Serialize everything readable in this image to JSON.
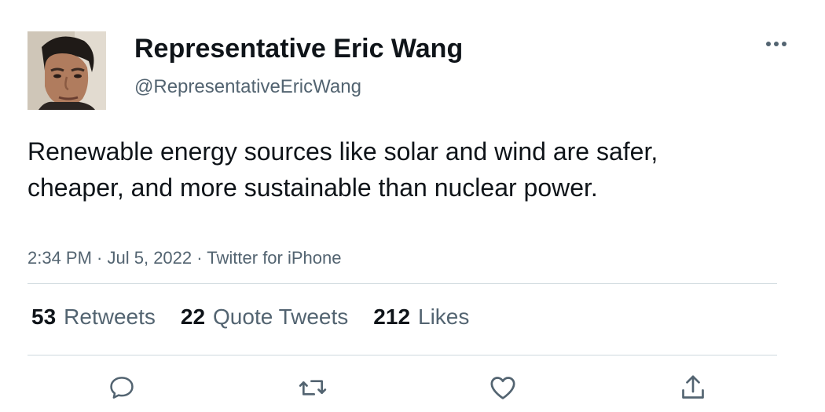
{
  "tweet": {
    "author": {
      "display_name": "Representative Eric Wang",
      "handle": "@RepresentativeEricWang"
    },
    "text": "Renewable energy sources like solar and wind are safer, cheaper, and more sustainable than nuclear power.",
    "meta": {
      "time": "2:34 PM",
      "date": "Jul 5, 2022",
      "source": "Twitter for iPhone",
      "separator": " · "
    },
    "stats": [
      {
        "count": "53",
        "label": "Retweets"
      },
      {
        "count": "22",
        "label": "Quote Tweets"
      },
      {
        "count": "212",
        "label": "Likes"
      }
    ]
  },
  "actions": [
    {
      "icon": "reply-icon"
    },
    {
      "icon": "retweet-icon"
    },
    {
      "icon": "like-icon"
    },
    {
      "icon": "share-icon"
    }
  ],
  "colors": {
    "text_primary": "#0f1419",
    "text_secondary": "#536471",
    "divider": "#cfd9de",
    "background": "#ffffff"
  }
}
